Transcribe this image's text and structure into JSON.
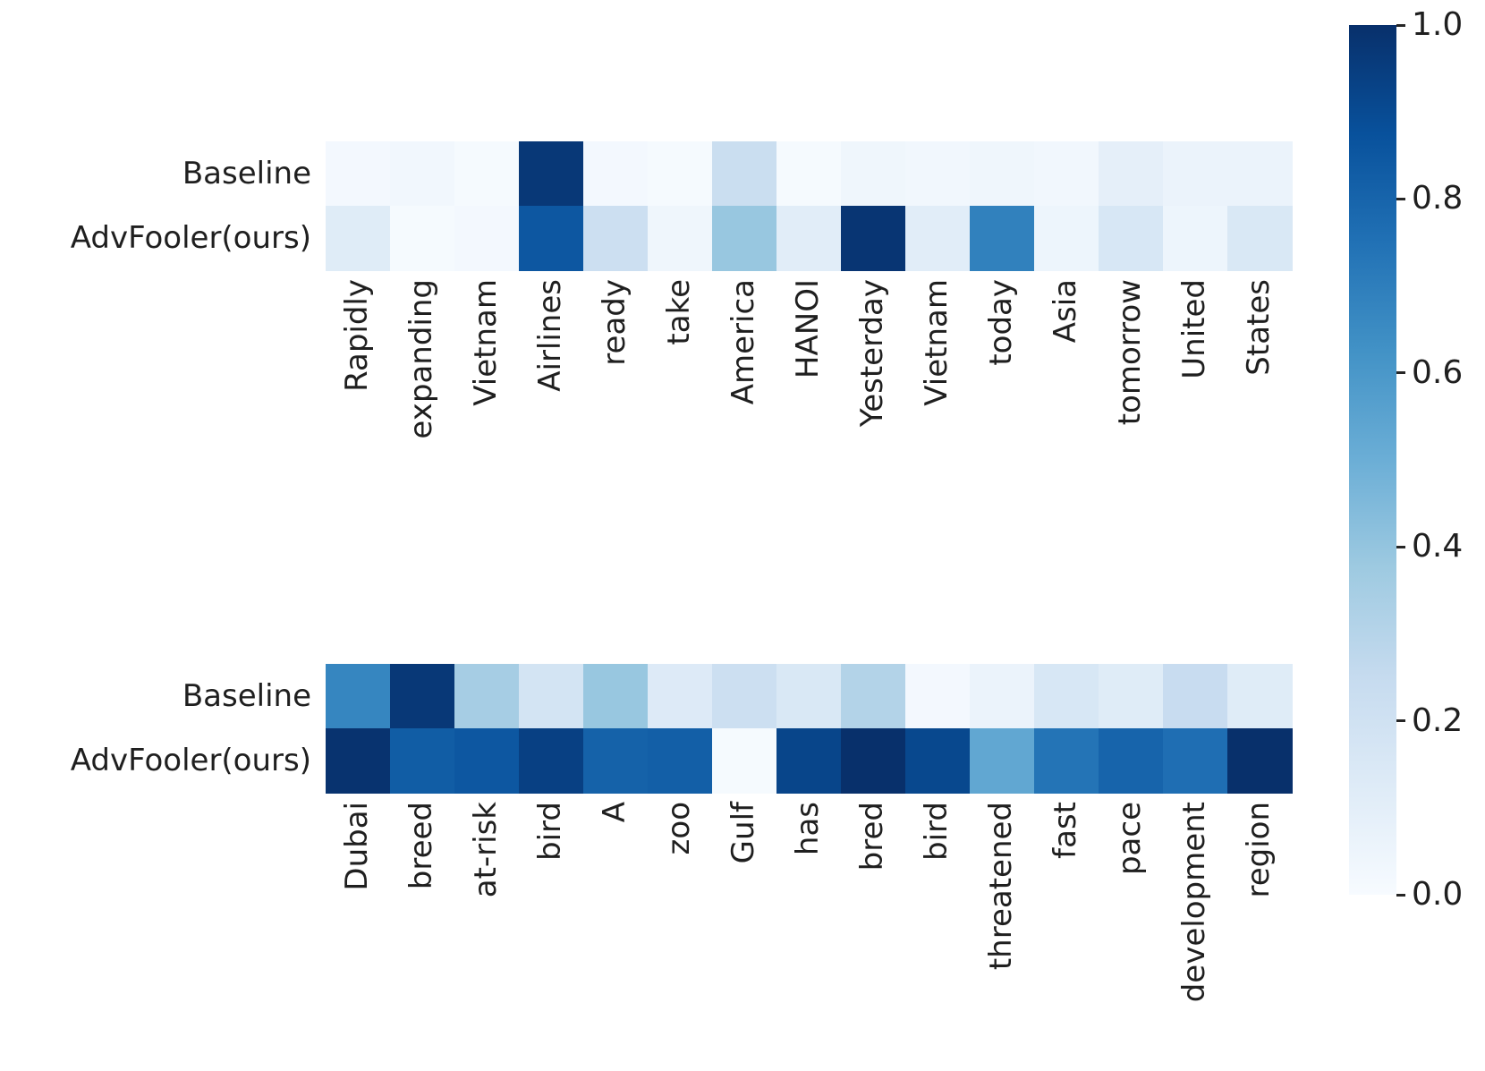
{
  "chart_data": {
    "type": "heatmap",
    "title": "",
    "xlabel": "",
    "ylabel": "",
    "colormap": "Blues",
    "vmin": 0.0,
    "vmax": 1.0,
    "grid": false,
    "legend_position": "right-colorbar",
    "colorbar_ticks": [
      "1.0",
      "0.8",
      "0.6",
      "0.4",
      "0.2",
      "0.0"
    ],
    "colormap_stops": [
      "#f7fbff",
      "#deebf7",
      "#c6dbef",
      "#9ecae1",
      "#6baed6",
      "#4292c6",
      "#2171b5",
      "#08519c",
      "#08306b"
    ],
    "heatmaps": [
      {
        "name": "sentence-1",
        "columns": [
          "Rapidly",
          "expanding",
          "Vietnam",
          "Airlines",
          "ready",
          "take",
          "America",
          "HANOI",
          "Yesterday",
          "Vietnam",
          "today",
          "Asia",
          "tomorrow",
          "United",
          "States"
        ],
        "rows": [
          {
            "label": "Baseline",
            "values": [
              0.02,
              0.03,
              0.01,
              0.97,
              0.02,
              0.01,
              0.23,
              0.01,
              0.04,
              0.03,
              0.04,
              0.03,
              0.09,
              0.06,
              0.06
            ]
          },
          {
            "label": "AdvFooler(ours)",
            "values": [
              0.12,
              0.01,
              0.02,
              0.85,
              0.22,
              0.04,
              0.39,
              0.11,
              0.98,
              0.11,
              0.69,
              0.05,
              0.16,
              0.05,
              0.15
            ]
          }
        ]
      },
      {
        "name": "sentence-2",
        "columns": [
          "Dubai",
          "breed",
          "at-risk",
          "bird",
          "A",
          "zoo",
          "Gulf",
          "has",
          "bred",
          "bird",
          "threatened",
          "fast",
          "pace",
          "development",
          "region"
        ],
        "rows": [
          {
            "label": "Baseline",
            "values": [
              0.67,
              0.97,
              0.35,
              0.18,
              0.39,
              0.13,
              0.22,
              0.15,
              0.31,
              0.02,
              0.06,
              0.16,
              0.12,
              0.24,
              0.12
            ]
          },
          {
            "label": "AdvFooler(ours)",
            "values": [
              0.99,
              0.83,
              0.85,
              0.94,
              0.81,
              0.82,
              0.01,
              0.92,
              1.0,
              0.91,
              0.53,
              0.74,
              0.8,
              0.76,
              1.0
            ]
          }
        ]
      }
    ]
  }
}
